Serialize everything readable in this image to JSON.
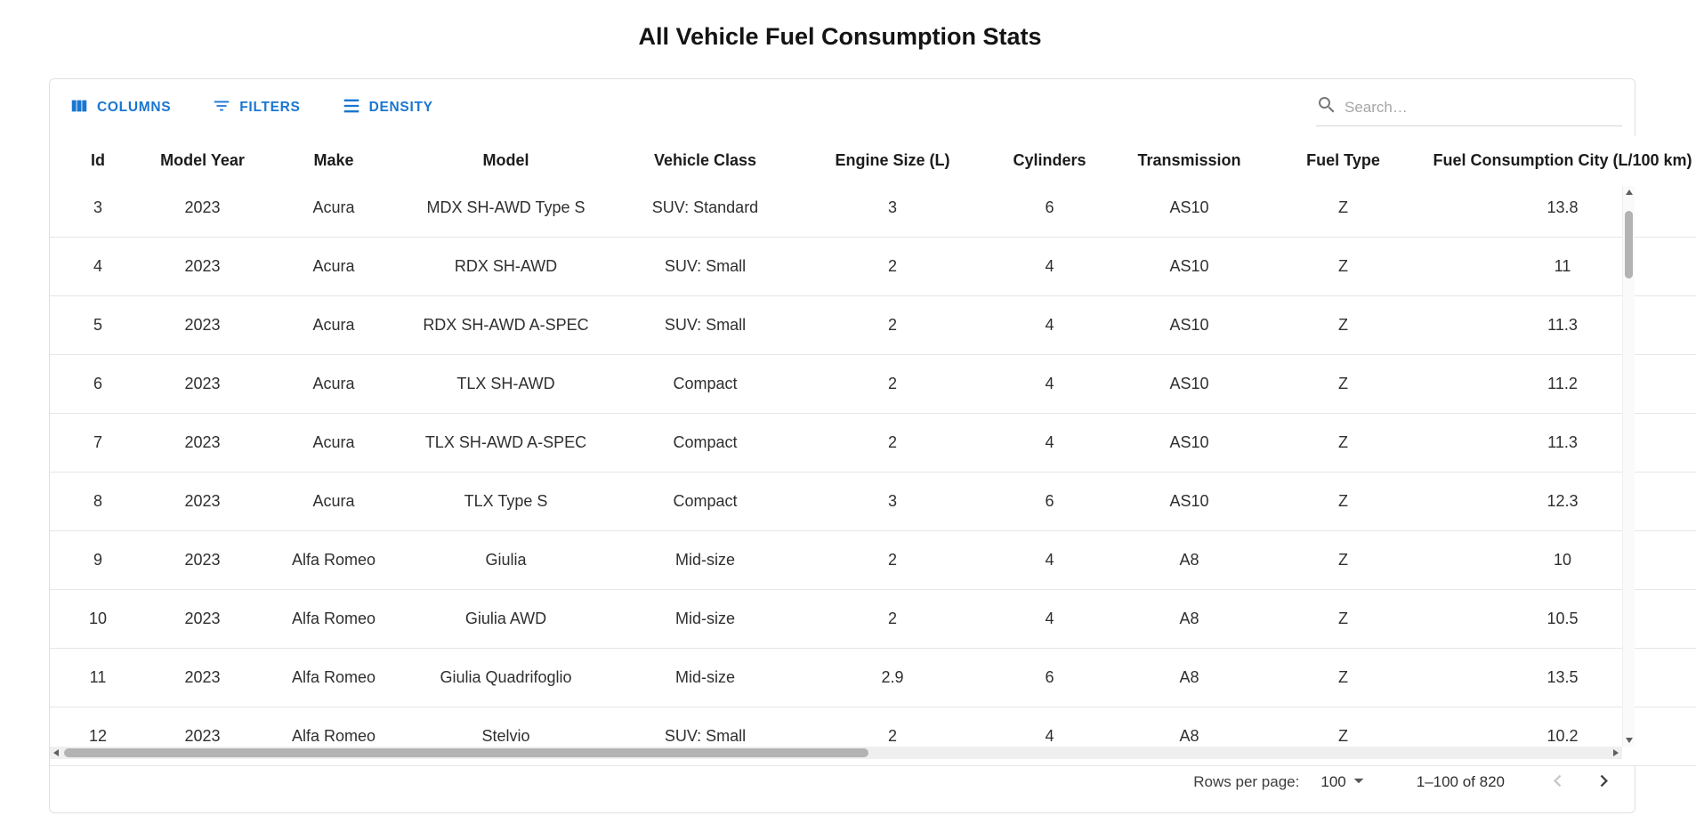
{
  "page": {
    "title": "All Vehicle Fuel Consumption Stats"
  },
  "toolbar": {
    "buttons": [
      {
        "label": "COLUMNS",
        "icon": "view-columns-icon"
      },
      {
        "label": "FILTERS",
        "icon": "filter-list-icon"
      },
      {
        "label": "DENSITY",
        "icon": "density-icon"
      }
    ],
    "search": {
      "placeholder": "Search…",
      "value": ""
    }
  },
  "table": {
    "columns": [
      "Id",
      "Model Year",
      "Make",
      "Model",
      "Vehicle Class",
      "Engine Size (L)",
      "Cylinders",
      "Transmission",
      "Fuel Type",
      "Fuel Consumption City (L/100 km)"
    ],
    "rows": [
      [
        "3",
        "2023",
        "Acura",
        "MDX SH-AWD Type S",
        "SUV: Standard",
        "3",
        "6",
        "AS10",
        "Z",
        "13.8"
      ],
      [
        "4",
        "2023",
        "Acura",
        "RDX SH-AWD",
        "SUV: Small",
        "2",
        "4",
        "AS10",
        "Z",
        "11"
      ],
      [
        "5",
        "2023",
        "Acura",
        "RDX SH-AWD A-SPEC",
        "SUV: Small",
        "2",
        "4",
        "AS10",
        "Z",
        "11.3"
      ],
      [
        "6",
        "2023",
        "Acura",
        "TLX SH-AWD",
        "Compact",
        "2",
        "4",
        "AS10",
        "Z",
        "11.2"
      ],
      [
        "7",
        "2023",
        "Acura",
        "TLX SH-AWD A-SPEC",
        "Compact",
        "2",
        "4",
        "AS10",
        "Z",
        "11.3"
      ],
      [
        "8",
        "2023",
        "Acura",
        "TLX Type S",
        "Compact",
        "3",
        "6",
        "AS10",
        "Z",
        "12.3"
      ],
      [
        "9",
        "2023",
        "Alfa Romeo",
        "Giulia",
        "Mid-size",
        "2",
        "4",
        "A8",
        "Z",
        "10"
      ],
      [
        "10",
        "2023",
        "Alfa Romeo",
        "Giulia AWD",
        "Mid-size",
        "2",
        "4",
        "A8",
        "Z",
        "10.5"
      ],
      [
        "11",
        "2023",
        "Alfa Romeo",
        "Giulia Quadrifoglio",
        "Mid-size",
        "2.9",
        "6",
        "A8",
        "Z",
        "13.5"
      ],
      [
        "12",
        "2023",
        "Alfa Romeo",
        "Stelvio",
        "SUV: Small",
        "2",
        "4",
        "A8",
        "Z",
        "10.2"
      ]
    ]
  },
  "footer": {
    "rows_per_page_label": "Rows per page:",
    "rows_per_page_value": "100",
    "range_label": "1–100 of 820"
  },
  "icons": {
    "columns": "three-vertical-bars",
    "filters": "filter-list-lines",
    "density": "three-horizontal-lines",
    "search": "magnifier",
    "rows_per_page": "arrow-drop-down",
    "previous_page": "chevron-left",
    "next_page": "chevron-right"
  },
  "colors": {
    "accent": "#1976d2"
  }
}
